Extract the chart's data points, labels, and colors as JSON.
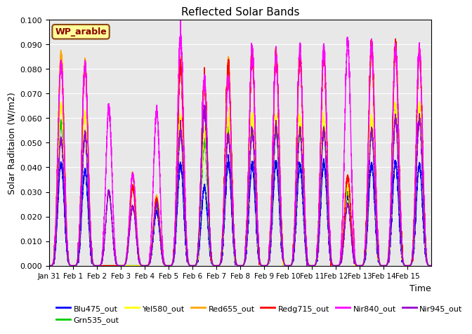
{
  "title": "Reflected Solar Bands",
  "xlabel": "Time",
  "ylabel": "Solar Raditaion (W/m2)",
  "annotation_text": "WP_arable",
  "annotation_color": "#8B0000",
  "annotation_bg": "#FFFF99",
  "annotation_edge": "#8B4513",
  "ylim": [
    0,
    0.1
  ],
  "yticks": [
    0.0,
    0.01,
    0.02,
    0.03,
    0.04,
    0.05,
    0.06,
    0.07,
    0.08,
    0.09,
    0.1
  ],
  "series": [
    {
      "label": "Blu475_out",
      "color": "#0000FF",
      "lw": 1.0
    },
    {
      "label": "Grn535_out",
      "color": "#00CC00",
      "lw": 1.0
    },
    {
      "label": "Yel580_out",
      "color": "#FFFF00",
      "lw": 1.0
    },
    {
      "label": "Red655_out",
      "color": "#FFA500",
      "lw": 1.0
    },
    {
      "label": "Redg715_out",
      "color": "#FF0000",
      "lw": 1.0
    },
    {
      "label": "Nir840_out",
      "color": "#FF00FF",
      "lw": 1.0
    },
    {
      "label": "Nir945_out",
      "color": "#9900CC",
      "lw": 1.0
    }
  ],
  "bg_color": "#E8E8E8",
  "n_days": 16,
  "pts_per_day": 288,
  "xtick_labels": [
    "Jan 31",
    "Feb 1",
    "Feb 2",
    "Feb 3",
    "Feb 4",
    "Feb 5",
    "Feb 6",
    "Feb 7",
    "Feb 8",
    "Feb 9",
    "Feb 10",
    "Feb 11",
    "Feb 12",
    "Feb 13",
    "Feb 14",
    "Feb 15"
  ],
  "day_peaks_Blu": [
    0.042,
    0.039,
    0.0,
    0.0,
    0.022,
    0.041,
    0.032,
    0.042,
    0.041,
    0.042,
    0.041,
    0.042,
    0.028,
    0.041,
    0.042,
    0.041
  ],
  "day_peaks_Grn": [
    0.059,
    0.054,
    0.0,
    0.0,
    0.025,
    0.055,
    0.05,
    0.055,
    0.055,
    0.055,
    0.055,
    0.055,
    0.03,
    0.055,
    0.065,
    0.065
  ],
  "day_peaks_Yel": [
    0.066,
    0.062,
    0.0,
    0.0,
    0.027,
    0.06,
    0.055,
    0.06,
    0.06,
    0.06,
    0.06,
    0.06,
    0.032,
    0.06,
    0.065,
    0.065
  ],
  "day_peaks_Red": [
    0.087,
    0.083,
    0.0,
    0.037,
    0.028,
    0.082,
    0.073,
    0.082,
    0.085,
    0.086,
    0.085,
    0.085,
    0.036,
    0.086,
    0.087,
    0.087
  ],
  "day_peaks_Redg": [
    0.083,
    0.082,
    0.0,
    0.032,
    0.027,
    0.081,
    0.075,
    0.081,
    0.085,
    0.085,
    0.085,
    0.085,
    0.036,
    0.09,
    0.09,
    0.087
  ],
  "day_peaks_Nir840": [
    0.083,
    0.082,
    0.064,
    0.037,
    0.063,
    0.093,
    0.075,
    0.076,
    0.088,
    0.086,
    0.088,
    0.088,
    0.091,
    0.09,
    0.088,
    0.088
  ],
  "day_peaks_Nir945": [
    0.052,
    0.054,
    0.03,
    0.024,
    0.025,
    0.055,
    0.063,
    0.053,
    0.055,
    0.057,
    0.055,
    0.055,
    0.025,
    0.055,
    0.06,
    0.06
  ]
}
